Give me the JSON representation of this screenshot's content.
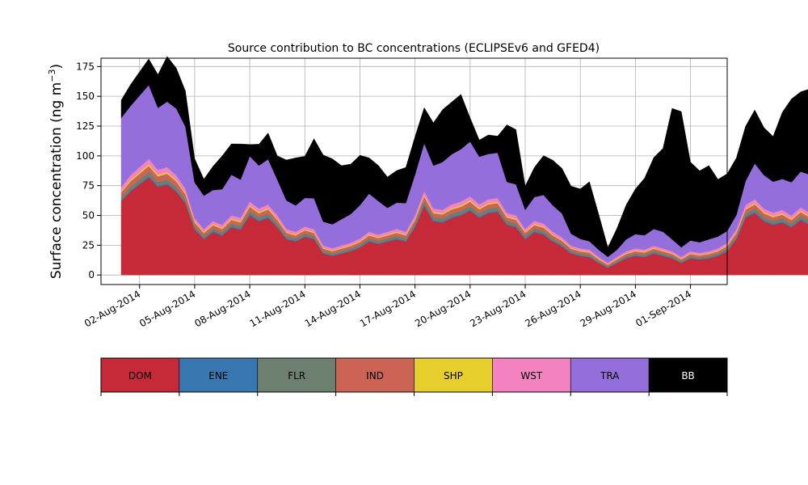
{
  "chart_data": {
    "type": "area",
    "stacked": true,
    "title": "Source contribution to BC concentrations (ECLIPSEv6 and GFED4)",
    "xlabel": "",
    "ylabel": "Surface concentration (ng m",
    "ylabel_unit_superscript": "−3",
    "ylabel_close": ")",
    "ylim": [
      -8,
      182
    ],
    "yticks": [
      0,
      25,
      50,
      75,
      100,
      125,
      150,
      175
    ],
    "xlim": [
      -1.6,
      32.5
    ],
    "xticks": [
      {
        "day": 0.5,
        "label": "02-Aug-2014"
      },
      {
        "day": 3.5,
        "label": "05-Aug-2014"
      },
      {
        "day": 6.5,
        "label": "08-Aug-2014"
      },
      {
        "day": 9.5,
        "label": "11-Aug-2014"
      },
      {
        "day": 12.5,
        "label": "14-Aug-2014"
      },
      {
        "day": 15.5,
        "label": "17-Aug-2014"
      },
      {
        "day": 18.5,
        "label": "20-Aug-2014"
      },
      {
        "day": 21.5,
        "label": "23-Aug-2014"
      },
      {
        "day": 24.5,
        "label": "26-Aug-2014"
      },
      {
        "day": 27.5,
        "label": "29-Aug-2014"
      },
      {
        "day": 30.5,
        "label": "01-Sep-2014"
      }
    ],
    "grid": true,
    "legend_placement": "bottom colorbar",
    "x_step_days": 0.5,
    "x_start_day": -0.5,
    "dom": [
      62,
      70,
      76,
      82,
      74,
      76,
      70,
      60,
      38,
      30,
      36,
      33,
      40,
      38,
      50,
      45,
      48,
      40,
      30,
      28,
      32,
      30,
      18,
      16,
      18,
      20,
      23,
      28,
      26,
      28,
      30,
      28,
      40,
      58,
      45,
      44,
      48,
      50,
      54,
      48,
      52,
      53,
      42,
      40,
      30,
      36,
      34,
      28,
      24,
      18,
      16,
      15,
      10,
      6,
      10,
      14,
      16,
      15,
      18,
      16,
      14,
      10,
      14,
      13,
      14,
      16,
      20,
      30,
      48,
      52,
      45,
      42,
      44,
      40,
      46,
      42,
      45,
      40,
      40,
      48,
      42,
      30,
      18,
      16,
      20,
      22,
      24,
      26,
      24,
      40,
      52,
      28,
      24,
      16,
      9,
      12,
      18,
      20,
      24,
      50,
      48,
      40,
      38,
      40,
      36,
      12,
      10,
      9,
      8,
      35,
      48,
      45,
      38,
      35,
      30,
      40,
      32,
      34,
      30,
      28,
      30,
      32,
      46,
      14
    ],
    "ene": [
      0.8,
      1.0,
      1.0,
      1.0,
      1.0,
      1.0,
      1.0,
      0.9,
      0.8,
      0.7,
      0.8,
      0.8,
      0.9,
      0.9,
      1.0,
      1.0,
      1.0,
      0.9,
      0.8,
      0.8,
      0.8,
      0.8,
      0.6,
      0.6,
      0.6,
      0.6,
      0.7,
      0.8,
      0.8,
      0.8,
      0.8,
      0.8,
      0.9,
      1.0,
      1.0,
      1.0,
      1.0,
      1.0,
      1.0,
      1.0,
      1.0,
      1.0,
      0.9,
      0.9,
      0.8,
      0.9,
      0.9,
      0.8,
      0.7,
      0.6,
      0.6,
      0.6,
      0.5,
      0.4,
      0.5,
      0.6,
      0.6,
      0.6,
      0.6,
      0.6,
      0.6,
      0.5,
      0.6,
      0.5,
      0.6,
      0.6,
      0.7,
      0.8,
      1.0,
      1.0,
      1.0,
      1.0,
      1.0,
      0.9,
      1.0,
      0.9,
      1.0,
      0.9,
      0.9,
      1.0,
      0.9,
      0.8,
      0.6,
      0.6,
      0.7,
      0.7,
      0.7,
      0.8,
      0.7,
      0.9,
      1.0,
      0.8,
      0.7,
      0.6,
      0.5,
      0.5,
      0.6,
      0.7,
      0.7,
      1.0,
      1.0,
      0.9,
      0.9,
      0.9,
      0.9,
      0.5,
      0.5,
      0.4,
      0.4,
      0.8,
      1.0,
      1.0,
      0.9,
      0.8,
      0.8,
      0.9,
      0.8,
      0.8,
      0.8,
      0.8,
      0.8,
      0.8,
      1.0,
      0.5
    ],
    "flr": [
      2.5,
      3.0,
      3.2,
      3.5,
      3.2,
      3.2,
      3.0,
      2.8,
      2.2,
      2.0,
      2.2,
      2.1,
      2.4,
      2.3,
      2.8,
      2.6,
      2.7,
      2.4,
      2.0,
      2.0,
      2.1,
      2.0,
      1.6,
      1.5,
      1.6,
      1.7,
      1.8,
      2.0,
      1.9,
      2.0,
      2.1,
      2.0,
      2.4,
      3.0,
      2.6,
      2.6,
      2.7,
      2.8,
      2.9,
      2.7,
      2.8,
      2.8,
      2.4,
      2.4,
      2.0,
      2.2,
      2.2,
      2.0,
      1.8,
      1.6,
      1.5,
      1.5,
      1.2,
      1.0,
      1.2,
      1.4,
      1.5,
      1.5,
      1.6,
      1.5,
      1.4,
      1.2,
      1.4,
      1.3,
      1.4,
      1.5,
      1.7,
      2.0,
      2.6,
      2.8,
      2.6,
      2.5,
      2.6,
      2.4,
      2.6,
      2.5,
      2.6,
      2.4,
      2.4,
      2.6,
      2.5,
      2.1,
      1.6,
      1.5,
      1.7,
      1.8,
      1.9,
      2.0,
      1.9,
      2.4,
      2.8,
      2.0,
      1.9,
      1.5,
      1.1,
      1.3,
      1.6,
      1.7,
      1.9,
      2.7,
      2.6,
      2.4,
      2.3,
      2.4,
      2.2,
      1.2,
      1.1,
      1.1,
      1.0,
      2.2,
      2.6,
      2.6,
      2.3,
      2.2,
      2.0,
      2.4,
      2.1,
      2.2,
      2.0,
      1.9,
      2.0,
      2.1,
      2.6,
      1.2
    ],
    "ind": [
      4.0,
      4.5,
      4.8,
      5.0,
      4.6,
      4.8,
      4.5,
      4.0,
      3.0,
      2.6,
      2.8,
      2.7,
      3.0,
      3.0,
      3.5,
      3.2,
      3.4,
      3.0,
      2.6,
      2.4,
      2.6,
      2.5,
      2.0,
      1.9,
      2.0,
      2.1,
      2.2,
      2.4,
      2.3,
      2.4,
      2.5,
      2.4,
      3.0,
      3.8,
      3.2,
      3.2,
      3.4,
      3.5,
      3.6,
      3.4,
      3.5,
      3.5,
      3.0,
      3.0,
      2.6,
      2.8,
      2.7,
      2.5,
      2.2,
      1.9,
      1.8,
      1.8,
      1.5,
      1.2,
      1.5,
      1.7,
      1.8,
      1.8,
      1.9,
      1.8,
      1.7,
      1.5,
      1.7,
      1.6,
      1.7,
      1.8,
      2.0,
      2.5,
      3.2,
      3.5,
      3.2,
      3.0,
      3.1,
      2.9,
      3.2,
      3.0,
      3.1,
      2.9,
      2.9,
      3.2,
      3.0,
      2.5,
      1.9,
      1.8,
      2.0,
      2.1,
      2.2,
      2.3,
      2.2,
      2.9,
      3.4,
      2.4,
      2.2,
      1.8,
      1.3,
      1.5,
      1.9,
      2.0,
      2.2,
      3.3,
      3.2,
      2.9,
      2.8,
      2.9,
      2.7,
      1.4,
      1.3,
      1.2,
      1.2,
      2.6,
      3.2,
      3.1,
      2.8,
      2.6,
      2.4,
      2.9,
      2.5,
      2.6,
      2.4,
      2.3,
      2.4,
      2.5,
      3.1,
      1.4
    ],
    "shp": [
      1.0,
      1.2,
      1.3,
      1.4,
      1.3,
      1.3,
      1.2,
      1.1,
      0.9,
      0.8,
      0.9,
      0.9,
      1.0,
      1.0,
      1.1,
      1.0,
      1.0,
      0.9,
      0.8,
      0.8,
      0.8,
      0.8,
      0.7,
      0.7,
      0.7,
      0.7,
      0.8,
      0.8,
      0.8,
      0.8,
      0.9,
      0.8,
      1.0,
      1.2,
      1.0,
      1.0,
      1.1,
      1.1,
      1.2,
      1.1,
      1.1,
      1.1,
      1.0,
      1.0,
      0.9,
      0.9,
      0.9,
      0.8,
      0.8,
      0.7,
      0.7,
      0.7,
      0.6,
      0.5,
      0.6,
      0.6,
      0.7,
      0.7,
      0.7,
      0.7,
      0.6,
      0.6,
      0.6,
      0.6,
      0.6,
      0.7,
      0.7,
      0.8,
      1.0,
      1.1,
      1.0,
      1.0,
      1.0,
      0.9,
      1.0,
      1.0,
      1.0,
      0.9,
      0.9,
      1.0,
      1.0,
      0.8,
      0.7,
      0.7,
      0.7,
      0.8,
      0.8,
      0.8,
      0.8,
      0.9,
      1.1,
      0.8,
      0.8,
      0.7,
      0.5,
      0.6,
      0.7,
      0.7,
      0.8,
      1.0,
      1.0,
      0.9,
      0.9,
      0.9,
      0.9,
      0.6,
      0.5,
      0.5,
      0.5,
      0.8,
      1.0,
      1.0,
      0.9,
      0.9,
      0.8,
      0.9,
      0.8,
      0.9,
      0.8,
      0.8,
      0.8,
      0.8,
      1.0,
      0.6
    ],
    "wst": [
      3.5,
      4.0,
      4.2,
      4.5,
      4.2,
      4.2,
      4.0,
      3.6,
      2.8,
      2.4,
      2.6,
      2.5,
      2.8,
      2.8,
      3.2,
      3.0,
      3.1,
      2.8,
      2.4,
      2.3,
      2.4,
      2.3,
      1.9,
      1.8,
      1.9,
      2.0,
      2.1,
      2.3,
      2.2,
      2.3,
      2.4,
      2.3,
      2.8,
      3.5,
      3.0,
      3.0,
      3.1,
      3.2,
      3.3,
      3.1,
      3.2,
      3.2,
      2.8,
      2.8,
      2.4,
      2.6,
      2.5,
      2.3,
      2.1,
      1.8,
      1.7,
      1.7,
      1.4,
      1.1,
      1.4,
      1.6,
      1.7,
      1.7,
      1.8,
      1.7,
      1.6,
      1.4,
      1.6,
      1.5,
      1.6,
      1.7,
      1.9,
      2.3,
      3.0,
      3.2,
      3.0,
      2.8,
      2.9,
      2.7,
      3.0,
      2.8,
      2.9,
      2.7,
      2.7,
      3.0,
      2.8,
      2.3,
      1.8,
      1.7,
      1.9,
      2.0,
      2.1,
      2.2,
      2.1,
      2.7,
      3.2,
      2.2,
      2.1,
      1.7,
      1.2,
      1.4,
      1.8,
      1.9,
      2.1,
      3.1,
      3.0,
      2.7,
      2.6,
      2.7,
      2.5,
      1.3,
      1.2,
      1.1,
      1.1,
      2.4,
      3.0,
      2.9,
      2.6,
      2.4,
      2.2,
      2.7,
      2.3,
      2.4,
      2.2,
      2.1,
      2.2,
      2.3,
      2.9,
      1.3
    ],
    "tra": [
      58,
      58,
      60,
      62,
      52,
      55,
      56,
      52,
      30,
      28,
      26,
      30,
      34,
      32,
      38,
      36,
      38,
      30,
      24,
      22,
      24,
      26,
      20,
      20,
      22,
      24,
      28,
      32,
      28,
      20,
      22,
      24,
      34,
      40,
      36,
      40,
      42,
      44,
      46,
      40,
      38,
      38,
      26,
      26,
      16,
      20,
      24,
      22,
      20,
      10,
      8,
      7,
      6,
      5,
      6,
      10,
      12,
      12,
      14,
      14,
      10,
      8,
      9,
      9,
      10,
      10,
      10,
      12,
      20,
      30,
      28,
      26,
      26,
      28,
      30,
      32,
      34,
      38,
      38,
      38,
      42,
      30,
      22,
      20,
      22,
      26,
      28,
      28,
      20,
      40,
      60,
      30,
      22,
      22,
      14,
      18,
      22,
      22,
      20,
      38,
      40,
      42,
      44,
      40,
      30,
      14,
      12,
      12,
      12,
      30,
      44,
      40,
      36,
      36,
      30,
      36,
      32,
      32,
      32,
      32,
      32,
      30,
      34,
      14
    ],
    "bb": [
      15,
      18,
      20,
      22,
      28,
      38,
      34,
      30,
      20,
      14,
      20,
      28,
      26,
      30,
      10,
      18,
      22,
      20,
      34,
      40,
      35,
      50,
      56,
      55,
      45,
      42,
      42,
      30,
      30,
      26,
      27,
      30,
      32,
      30,
      36,
      44,
      44,
      46,
      20,
      14,
      16,
      14,
      48,
      46,
      20,
      25,
      33,
      38,
      38,
      40,
      42,
      50,
      30,
      8,
      18,
      29,
      38,
      48,
      60,
      70,
      110,
      114,
      66,
      60,
      62,
      48,
      48,
      48,
      46,
      45,
      40,
      38,
      56,
      70,
      67,
      72,
      67,
      57,
      55,
      65,
      75,
      78,
      66,
      66,
      60,
      56,
      40,
      38,
      40,
      55,
      40,
      38,
      30,
      18,
      18,
      20,
      14,
      12,
      20,
      52,
      48,
      44,
      35,
      20,
      34,
      20,
      18,
      18,
      30,
      22,
      10,
      14,
      24,
      27,
      28,
      12,
      25,
      20,
      30,
      30,
      27,
      18,
      37,
      65
    ]
  },
  "legend": [
    {
      "label": "DOM",
      "color": "#c62a38",
      "text_color": "#000000"
    },
    {
      "label": "ENE",
      "color": "#3977b0",
      "text_color": "#000000"
    },
    {
      "label": "FLR",
      "color": "#6d7f6f",
      "text_color": "#000000"
    },
    {
      "label": "IND",
      "color": "#cc6456",
      "text_color": "#000000"
    },
    {
      "label": "SHP",
      "color": "#e6cf2c",
      "text_color": "#000000"
    },
    {
      "label": "WST",
      "color": "#f283c0",
      "text_color": "#000000"
    },
    {
      "label": "TRA",
      "color": "#946fdc",
      "text_color": "#000000"
    },
    {
      "label": "BB",
      "color": "#000000",
      "text_color": "#ffffff"
    }
  ],
  "series_order": [
    "dom",
    "ene",
    "flr",
    "ind",
    "shp",
    "wst",
    "tra",
    "bb"
  ]
}
